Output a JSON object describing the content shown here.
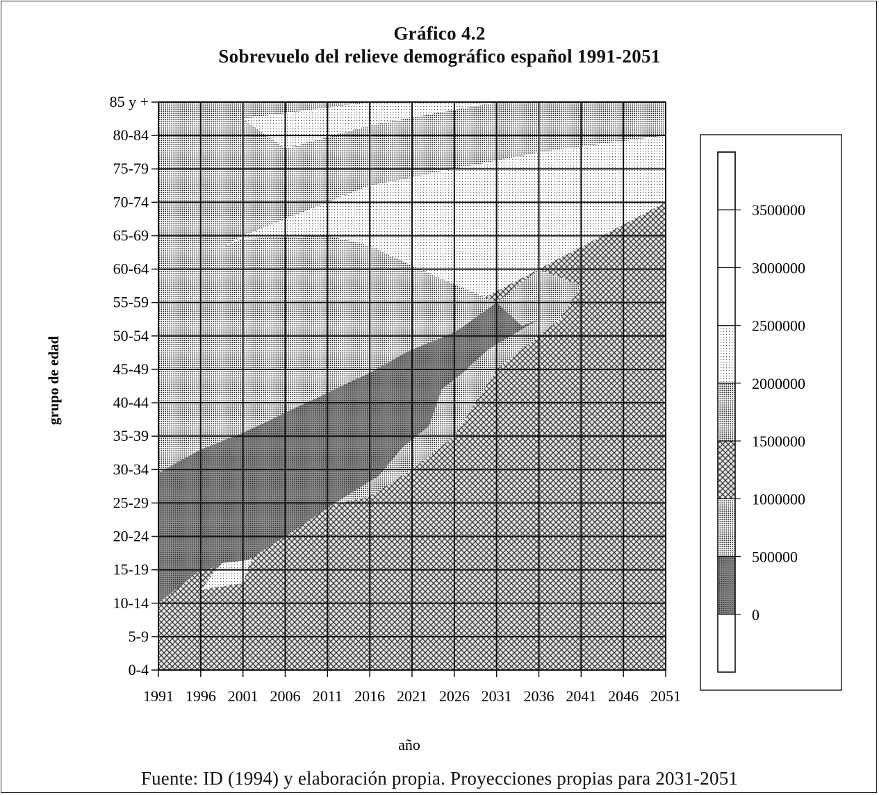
{
  "chart_data": {
    "type": "heatmap",
    "title": "Gráfico 4.2",
    "subtitle": "Sobrevuelo del relieve demográfico español 1991-2051",
    "xlabel": "año",
    "ylabel": "grupo de edad",
    "x_ticks": [
      "1991",
      "1996",
      "2001",
      "2006",
      "2011",
      "2016",
      "2021",
      "2026",
      "2031",
      "2036",
      "2041",
      "2046",
      "2051"
    ],
    "y_ticks": [
      "0-4",
      "5-9",
      "10-14",
      "15-19",
      "20-24",
      "25-29",
      "30-34",
      "35-39",
      "40-44",
      "45-49",
      "50-54",
      "55-59",
      "60-64",
      "65-69",
      "70-74",
      "75-79",
      "80-84",
      "85 y +"
    ],
    "legend": {
      "position": "right",
      "levels": [
        "0",
        "500000",
        "1000000",
        "1500000",
        "2000000",
        "2500000",
        "3000000",
        "3500000"
      ]
    },
    "ridge": [
      {
        "year": 1991,
        "band_low": "10-14",
        "band_high": "25-29"
      },
      {
        "year": 2001,
        "band_low": "20-24",
        "band_high": "35-39"
      },
      {
        "year": 2011,
        "band_low": "25-29",
        "band_high": "40-44"
      },
      {
        "year": 2021,
        "band_low": "40-44",
        "band_high": "55-59"
      },
      {
        "year": 2031,
        "band_low": "50-54",
        "band_high": "60-64"
      },
      {
        "year": 2036,
        "band_low": "55-59",
        "band_high": "60-64"
      }
    ]
  },
  "source_note": "Fuente: ID (1994) y elaboración propia. Proyecciones propias para 2031-2051"
}
